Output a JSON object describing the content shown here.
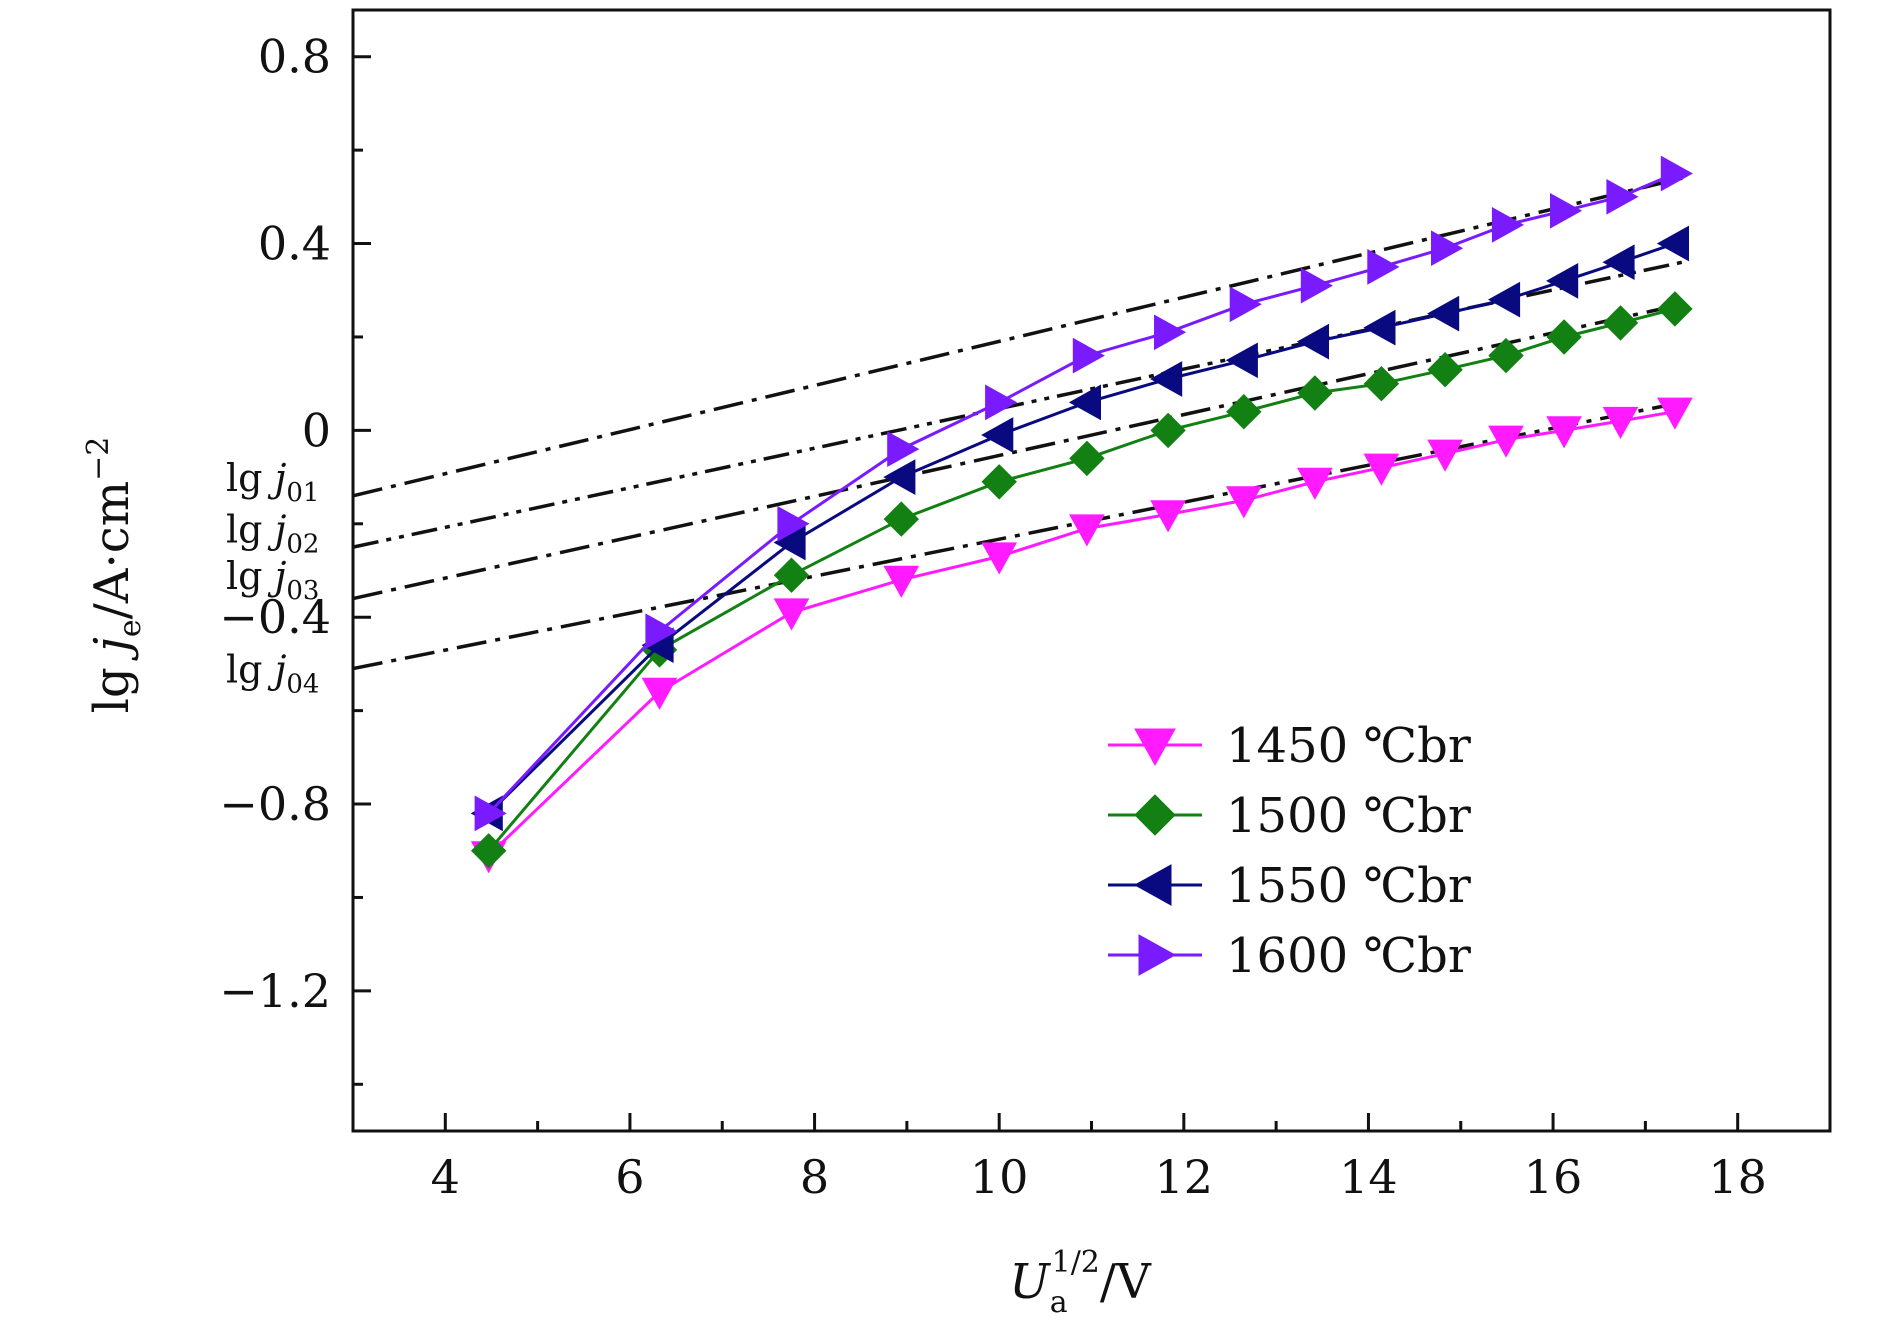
{
  "chart_data": {
    "type": "line",
    "title": "",
    "xlabel": "U_a^{1/2}/V",
    "xlabel_main": "U",
    "xlabel_sub": "a",
    "xlabel_sup": "1/2",
    "xlabel_unit": "/V",
    "ylabel": "lg j_e/A·cm^-2",
    "ylabel_pre": "lg ",
    "ylabel_j": "j",
    "ylabel_sub": "e",
    "ylabel_unit": "/A·cm",
    "ylabel_sup": "−2",
    "xlim": [
      3,
      19
    ],
    "ylim": [
      -1.5,
      0.9
    ],
    "x_ticks": [
      4,
      6,
      8,
      10,
      12,
      14,
      16,
      18
    ],
    "x_tick_labels": [
      "4",
      "6",
      "8",
      "10",
      "12",
      "14",
      "16",
      "18"
    ],
    "y_ticks": [
      0.8,
      0.4,
      0,
      -0.4,
      -0.8,
      -1.2
    ],
    "y_tick_labels": [
      "0.8",
      "0.4",
      "0",
      "−0.4",
      "−0.8",
      "−1.2"
    ],
    "x_minor_ticks": [
      5,
      7,
      9,
      11,
      13,
      15,
      17
    ],
    "y_minor_ticks": [
      0.6,
      0.2,
      -0.2,
      -0.6,
      -1.0,
      -1.4
    ],
    "grid": false,
    "legend_position": "lower-right",
    "x": [
      4.47,
      6.32,
      7.75,
      8.94,
      10.0,
      10.95,
      11.83,
      12.65,
      13.42,
      14.14,
      14.83,
      15.49,
      16.12,
      16.73,
      17.32
    ],
    "series": [
      {
        "name": "1450 ℃br",
        "color": "#ff1aff",
        "marker": "triangle-down",
        "values": [
          -0.91,
          -0.56,
          -0.39,
          -0.32,
          -0.27,
          -0.21,
          -0.18,
          -0.15,
          -0.11,
          -0.08,
          -0.05,
          -0.02,
          0.0,
          0.02,
          0.04
        ]
      },
      {
        "name": "1500 ℃br",
        "color": "#128012",
        "marker": "diamond",
        "values": [
          -0.9,
          -0.47,
          -0.31,
          -0.19,
          -0.11,
          -0.06,
          0.0,
          0.04,
          0.08,
          0.1,
          0.13,
          0.16,
          0.2,
          0.23,
          0.26
        ]
      },
      {
        "name": "1550 ℃br",
        "color": "#0a0a80",
        "marker": "triangle-left",
        "values": [
          -0.82,
          -0.46,
          -0.24,
          -0.1,
          -0.01,
          0.06,
          0.11,
          0.15,
          0.19,
          0.22,
          0.25,
          0.28,
          0.32,
          0.36,
          0.4
        ]
      },
      {
        "name": "1600 ℃br",
        "color": "#7a1aff",
        "marker": "triangle-right",
        "values": [
          -0.82,
          -0.43,
          -0.2,
          -0.04,
          0.06,
          0.16,
          0.21,
          0.27,
          0.31,
          0.35,
          0.39,
          0.44,
          0.47,
          0.5,
          0.55
        ]
      }
    ],
    "fit_lines": [
      {
        "label": "lg j01",
        "x": [
          3.0,
          17.4
        ],
        "y": [
          -0.14,
          0.54
        ],
        "style": "dashdot"
      },
      {
        "label": "lg j02",
        "x": [
          3.0,
          17.4
        ],
        "y": [
          -0.25,
          0.36
        ],
        "style": "dashdotdot"
      },
      {
        "label": "lg j03",
        "x": [
          3.0,
          17.4
        ],
        "y": [
          -0.36,
          0.27
        ],
        "style": "dashdot"
      },
      {
        "label": "lg j04",
        "x": [
          3.0,
          17.4
        ],
        "y": [
          -0.51,
          0.06
        ],
        "style": "dashdot"
      }
    ],
    "annotations": [
      {
        "pre": "lg ",
        "j": "j",
        "sub": "01",
        "y": -0.1
      },
      {
        "pre": "lg ",
        "j": "j",
        "sub": "02",
        "y": -0.21
      },
      {
        "pre": "lg ",
        "j": "j",
        "sub": "03",
        "y": -0.31
      },
      {
        "pre": "lg ",
        "j": "j",
        "sub": "04",
        "y": -0.51
      }
    ]
  }
}
